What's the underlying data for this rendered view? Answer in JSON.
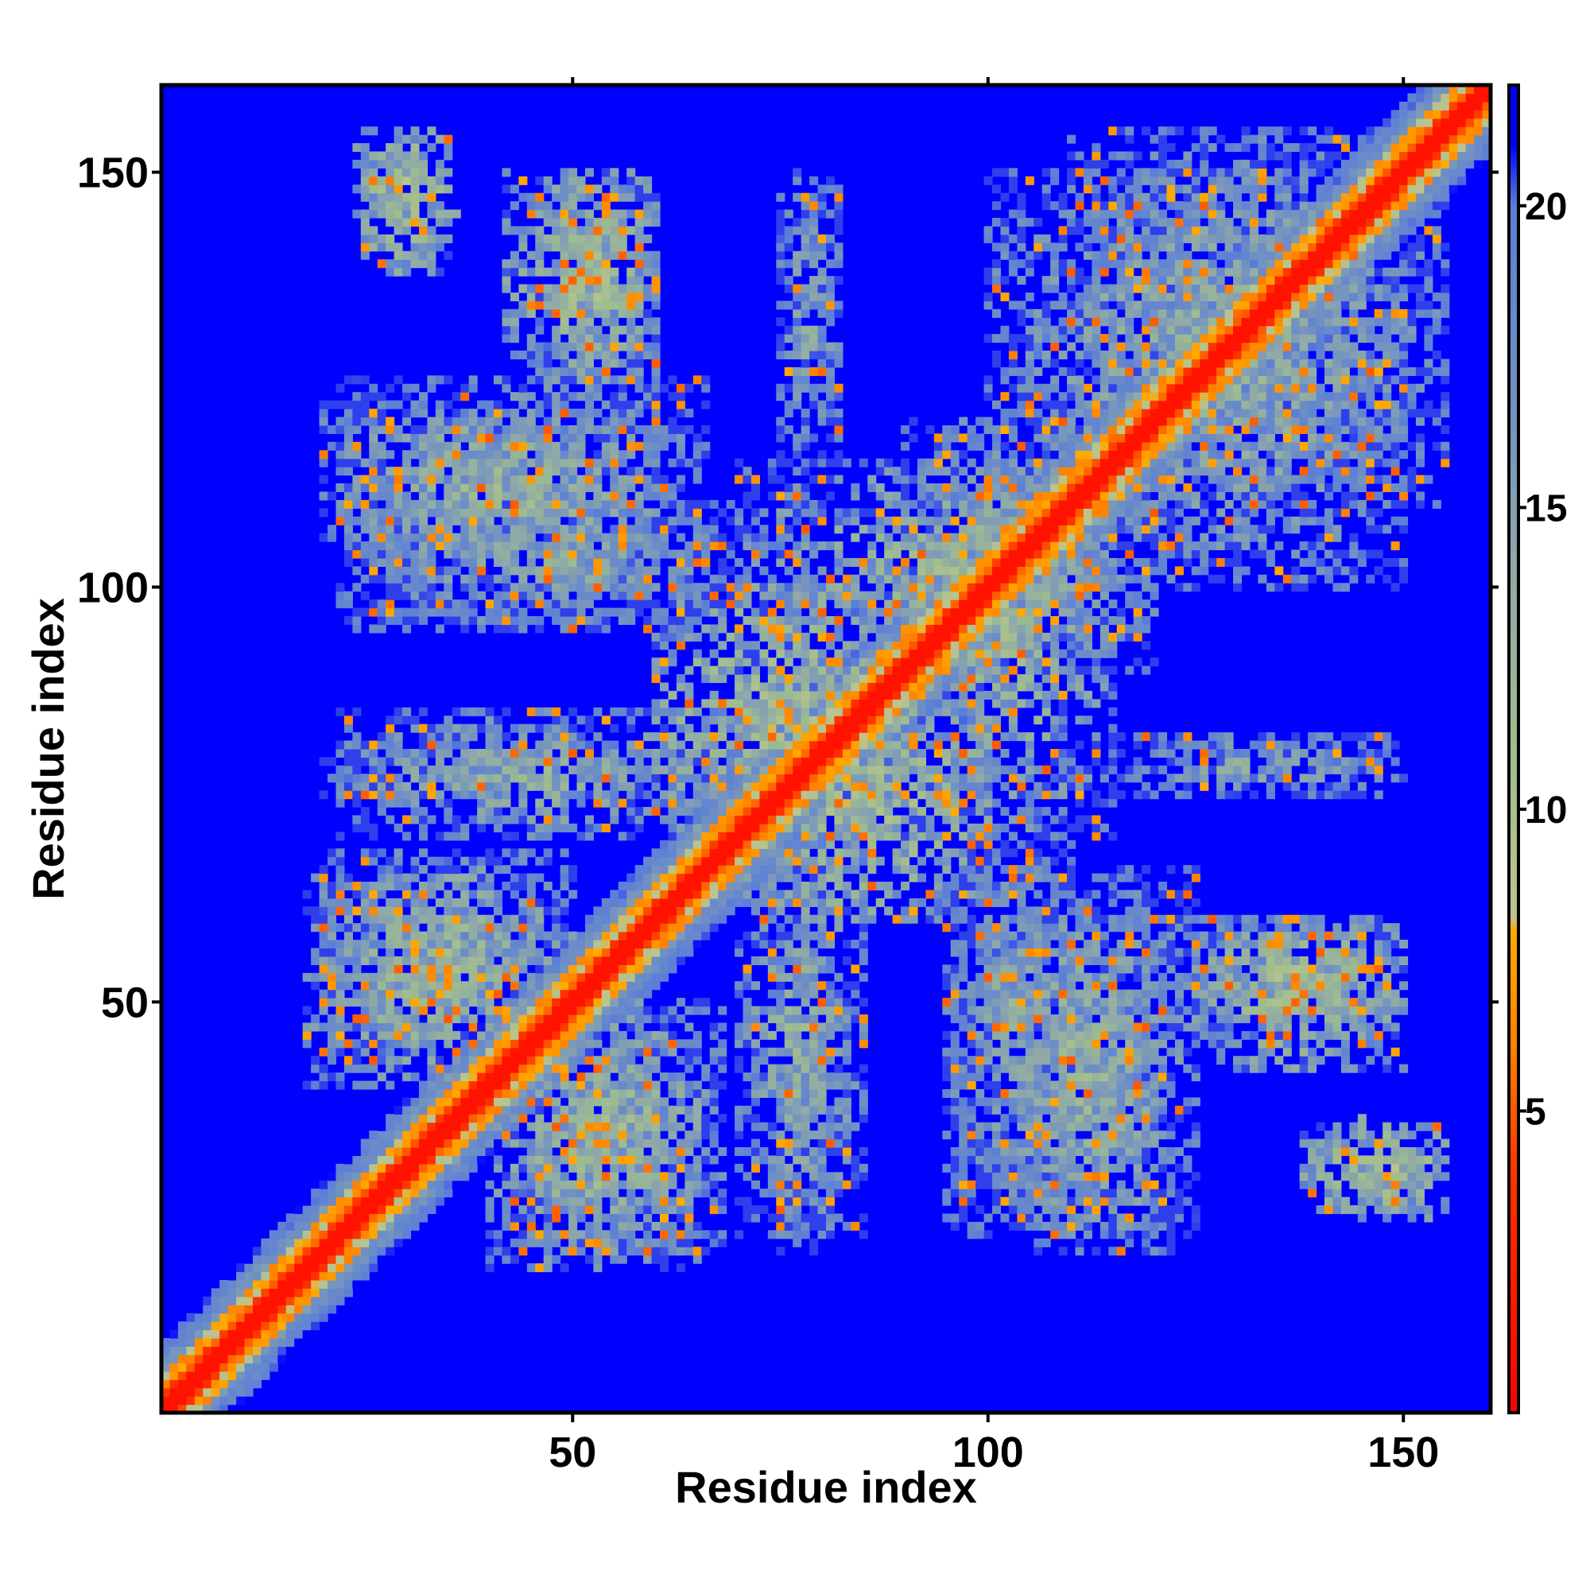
{
  "chart_data": {
    "type": "heatmap",
    "title": "",
    "xlabel": "Residue index",
    "ylabel": "Residue index",
    "xlim": [
      0.5,
      160.5
    ],
    "ylim": [
      0.5,
      160.5
    ],
    "x_ticks": [
      50,
      100,
      150
    ],
    "y_ticks": [
      50,
      100,
      150
    ],
    "n_residues": 160,
    "colorbar": {
      "range": [
        0,
        22
      ],
      "ticks": [
        5,
        10,
        15,
        20
      ],
      "color_stops": [
        {
          "value": 0,
          "color": "#ff0000"
        },
        {
          "value": 4,
          "color": "#ff3300"
        },
        {
          "value": 6,
          "color": "#ff7f00"
        },
        {
          "value": 8,
          "color": "#ffaa00"
        },
        {
          "value": 8.2,
          "color": "#bcc48e"
        },
        {
          "value": 11,
          "color": "#9fbd8e"
        },
        {
          "value": 14,
          "color": "#8fa9a8"
        },
        {
          "value": 17,
          "color": "#6f8fc4"
        },
        {
          "value": 20,
          "color": "#5b7ed8"
        },
        {
          "value": 21,
          "color": "#0000ff"
        },
        {
          "value": 22,
          "color": "#0000ff"
        }
      ]
    },
    "contact_regions": [
      {
        "x": [
          1,
          160
        ],
        "y": [
          1,
          160
        ],
        "diagonal": true,
        "value": 3
      },
      {
        "x": [
          24,
          36
        ],
        "y": [
          144,
          155
        ],
        "value": 11
      },
      {
        "x": [
          42,
          60
        ],
        "y": [
          125,
          150
        ],
        "value": 12
      },
      {
        "x": [
          20,
          60
        ],
        "y": [
          104,
          122
        ],
        "value": 13
      },
      {
        "x": [
          28,
          70
        ],
        "y": [
          96,
          110
        ],
        "value": 15
      },
      {
        "x": [
          20,
          60
        ],
        "y": [
          75,
          80
        ],
        "value": 14
      },
      {
        "x": [
          20,
          50
        ],
        "y": [
          42,
          68
        ],
        "value": 13
      },
      {
        "x": [
          60,
          90
        ],
        "y": [
          70,
          100
        ],
        "value": 11
      },
      {
        "x": [
          70,
          85
        ],
        "y": [
          22,
          70
        ],
        "value": 14
      },
      {
        "x": [
          90,
          115
        ],
        "y": [
          70,
          120
        ],
        "value": 13
      },
      {
        "x": [
          95,
          125
        ],
        "y": [
          22,
          66
        ],
        "value": 14
      },
      {
        "x": [
          125,
          150
        ],
        "y": [
          46,
          60
        ],
        "value": 12
      },
      {
        "x": [
          138,
          152
        ],
        "y": [
          25,
          35
        ],
        "value": 11
      },
      {
        "x": [
          110,
          150
        ],
        "y": [
          100,
          155
        ],
        "value": 14
      },
      {
        "x": [
          40,
          65
        ],
        "y": [
          18,
          45
        ],
        "value": 13
      },
      {
        "x": [
          115,
          150
        ],
        "y": [
          75,
          82
        ],
        "value": 15
      }
    ]
  },
  "colors": {
    "background": "#0000ff",
    "frame": "#000000",
    "page": "#ffffff"
  }
}
